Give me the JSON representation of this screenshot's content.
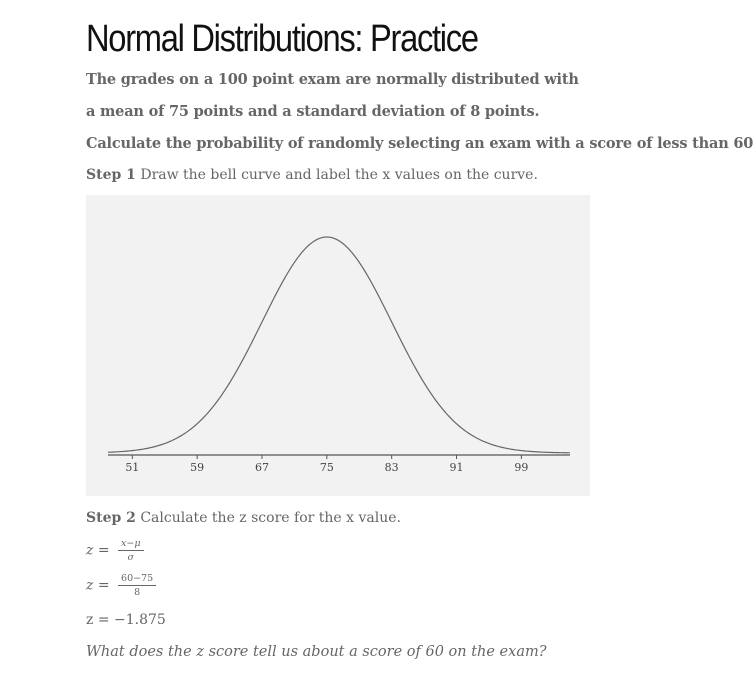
{
  "title": "Normal Distributions: Practice",
  "intro": {
    "line1": "The grades on a 100 point exam are normally distributed with",
    "line2": "a mean of 75 points and a standard deviation of 8 points.",
    "line3": "Calculate the probability of randomly selecting an exam with a score of less than 60."
  },
  "step1": {
    "label": "Step 1",
    "text": "Draw the bell curve and label the x values on the curve."
  },
  "chart_data": {
    "type": "line",
    "description": "normal density curve",
    "mean": 75,
    "sd": 8,
    "x_ticks": [
      51,
      59,
      67,
      75,
      83,
      91,
      99
    ],
    "xlim": [
      48,
      105
    ],
    "title": "",
    "xlabel": "",
    "ylabel": "",
    "grid": false
  },
  "step2": {
    "label": "Step 2",
    "text": "Calculate the z score for the x value."
  },
  "formula": {
    "z": "z",
    "eq": "=",
    "general_num": "x−μ",
    "general_den": "σ",
    "sub_num": "60−75",
    "sub_den": "8",
    "result": "z = −1.875"
  },
  "question": "What does the z score tell us about a score of 60 on the exam?"
}
